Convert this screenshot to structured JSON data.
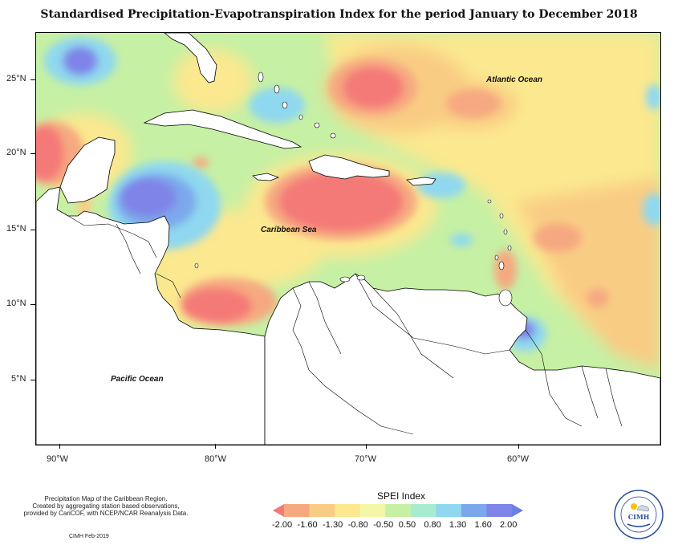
{
  "title": "Standardised Precipitation-Evapotranspiration Index for the period January to December 2018",
  "map": {
    "lon_labels": [
      "90°W",
      "80°W",
      "70°W",
      "60°W"
    ],
    "lat_labels": [
      "25°N",
      "20°N",
      "15°N",
      "10°N",
      "5°N"
    ],
    "regions": {
      "atlantic": "Atlantic Ocean",
      "caribbean": "Caribbean Sea",
      "pacific": "Pacific Ocean"
    }
  },
  "legend": {
    "title": "SPEI Index",
    "ticks": [
      "-2.00",
      "-1.60",
      "-1.30",
      "-0.80",
      "-0.50",
      "0.50",
      "0.80",
      "1.30",
      "1.60",
      "2.00"
    ],
    "colors": [
      "#f47a78",
      "#f6a980",
      "#f9cc84",
      "#fbe88f",
      "#f4f6a8",
      "#c6f0a4",
      "#a8ecd0",
      "#8fd8ef",
      "#7ba8ec",
      "#7f84e8",
      "#6a7fe0"
    ]
  },
  "footer": {
    "lines": [
      "Precipitation Map of the Caribbean Region.",
      "Created by aggregating station based observations,",
      "provided by CariCOF, with NCEP/NCAR Reanalysis Data."
    ],
    "credit": "CIMH Feb-2019"
  },
  "logo": {
    "text": "CIMH"
  }
}
